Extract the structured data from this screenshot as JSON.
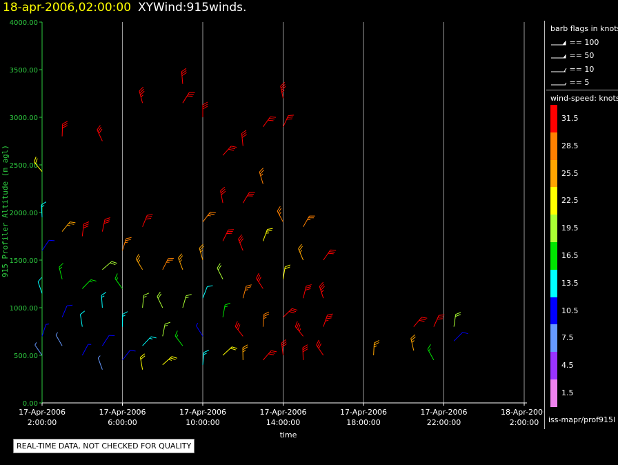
{
  "header": {
    "datetime": "18-apr-2006,02:00:00",
    "title": "XYWind:915winds."
  },
  "chart_data": {
    "type": "scatter",
    "subtype": "wind-barb time-height",
    "xlabel": "time",
    "ylabel": "915 Profiler Altitude (m agl)",
    "ylim": [
      0,
      4000
    ],
    "xlim_hours": [
      0,
      24
    ],
    "y_ticks": [
      "0.00",
      "500.00",
      "1000.00",
      "1500.00",
      "2000.00",
      "2500.00",
      "3000.00",
      "3500.00",
      "4000.00"
    ],
    "x_ticks": [
      {
        "line1": "17-Apr-2006",
        "line2": "2:00:00"
      },
      {
        "line1": "17-Apr-2006",
        "line2": "6:00:00"
      },
      {
        "line1": "17-Apr-2006",
        "line2": "10:00:00"
      },
      {
        "line1": "17-Apr-2006",
        "line2": "14:00:00"
      },
      {
        "line1": "17-Apr-2006",
        "line2": "18:00:00"
      },
      {
        "line1": "17-Apr-2006",
        "line2": "22:00:00"
      },
      {
        "line1": "18-Apr-2006",
        "line2": "2:00:00"
      }
    ],
    "grid": "vertical",
    "wind_barbs": [
      {
        "t": "17-Apr-2006 2:00",
        "alt_m": 2430,
        "speed_kt": 22
      },
      {
        "t": "17-Apr-2006 2:00",
        "alt_m": 1950,
        "speed_kt": 14
      },
      {
        "t": "17-Apr-2006 2:00",
        "alt_m": 1600,
        "speed_kt": 10
      },
      {
        "t": "17-Apr-2006 2:00",
        "alt_m": 1150,
        "speed_kt": 12
      },
      {
        "t": "17-Apr-2006 2:00",
        "alt_m": 700,
        "speed_kt": 9
      },
      {
        "t": "17-Apr-2006 2:00",
        "alt_m": 500,
        "speed_kt": 8
      },
      {
        "t": "17-Apr-2006 3:00",
        "alt_m": 2800,
        "speed_kt": 32
      },
      {
        "t": "17-Apr-2006 3:00",
        "alt_m": 1800,
        "speed_kt": 24
      },
      {
        "t": "17-Apr-2006 3:00",
        "alt_m": 1300,
        "speed_kt": 15
      },
      {
        "t": "17-Apr-2006 3:00",
        "alt_m": 900,
        "speed_kt": 11
      },
      {
        "t": "17-Apr-2006 3:00",
        "alt_m": 600,
        "speed_kt": 7
      },
      {
        "t": "17-Apr-2006 4:00",
        "alt_m": 1750,
        "speed_kt": 30
      },
      {
        "t": "17-Apr-2006 4:00",
        "alt_m": 1200,
        "speed_kt": 17
      },
      {
        "t": "17-Apr-2006 4:00",
        "alt_m": 800,
        "speed_kt": 12
      },
      {
        "t": "17-Apr-2006 4:00",
        "alt_m": 500,
        "speed_kt": 9
      },
      {
        "t": "17-Apr-2006 5:00",
        "alt_m": 2750,
        "speed_kt": 32
      },
      {
        "t": "17-Apr-2006 5:00",
        "alt_m": 1800,
        "speed_kt": 31
      },
      {
        "t": "17-Apr-2006 5:00",
        "alt_m": 1400,
        "speed_kt": 20
      },
      {
        "t": "17-Apr-2006 5:00",
        "alt_m": 1000,
        "speed_kt": 14
      },
      {
        "t": "17-Apr-2006 5:00",
        "alt_m": 600,
        "speed_kt": 10
      },
      {
        "t": "17-Apr-2006 5:00",
        "alt_m": 350,
        "speed_kt": 7
      },
      {
        "t": "17-Apr-2006 6:00",
        "alt_m": 1600,
        "speed_kt": 28
      },
      {
        "t": "17-Apr-2006 6:00",
        "alt_m": 1200,
        "speed_kt": 16
      },
      {
        "t": "17-Apr-2006 6:00",
        "alt_m": 800,
        "speed_kt": 13
      },
      {
        "t": "17-Apr-2006 6:00",
        "alt_m": 450,
        "speed_kt": 10
      },
      {
        "t": "17-Apr-2006 7:00",
        "alt_m": 3150,
        "speed_kt": 33
      },
      {
        "t": "17-Apr-2006 7:00",
        "alt_m": 1850,
        "speed_kt": 32
      },
      {
        "t": "17-Apr-2006 7:00",
        "alt_m": 1400,
        "speed_kt": 26
      },
      {
        "t": "17-Apr-2006 7:00",
        "alt_m": 1000,
        "speed_kt": 18
      },
      {
        "t": "17-Apr-2006 7:00",
        "alt_m": 600,
        "speed_kt": 14
      },
      {
        "t": "17-Apr-2006 7:00",
        "alt_m": 350,
        "speed_kt": 21
      },
      {
        "t": "17-Apr-2006 8:00",
        "alt_m": 1400,
        "speed_kt": 27
      },
      {
        "t": "17-Apr-2006 8:00",
        "alt_m": 1000,
        "speed_kt": 20
      },
      {
        "t": "17-Apr-2006 8:00",
        "alt_m": 700,
        "speed_kt": 18
      },
      {
        "t": "17-Apr-2006 8:00",
        "alt_m": 400,
        "speed_kt": 23
      },
      {
        "t": "17-Apr-2006 9:00",
        "alt_m": 3350,
        "speed_kt": 32
      },
      {
        "t": "17-Apr-2006 9:00",
        "alt_m": 3150,
        "speed_kt": 32
      },
      {
        "t": "17-Apr-2006 9:00",
        "alt_m": 1400,
        "speed_kt": 25
      },
      {
        "t": "17-Apr-2006 9:00",
        "alt_m": 1000,
        "speed_kt": 19
      },
      {
        "t": "17-Apr-2006 9:00",
        "alt_m": 600,
        "speed_kt": 17
      },
      {
        "t": "17-Apr-2006 10:00",
        "alt_m": 3000,
        "speed_kt": 31
      },
      {
        "t": "17-Apr-2006 10:00",
        "alt_m": 1900,
        "speed_kt": 27
      },
      {
        "t": "17-Apr-2006 10:00",
        "alt_m": 1500,
        "speed_kt": 24
      },
      {
        "t": "17-Apr-2006 10:00",
        "alt_m": 1100,
        "speed_kt": 12
      },
      {
        "t": "17-Apr-2006 10:00",
        "alt_m": 700,
        "speed_kt": 9
      },
      {
        "t": "17-Apr-2006 10:00",
        "alt_m": 400,
        "speed_kt": 13
      },
      {
        "t": "17-Apr-2006 11:00",
        "alt_m": 2600,
        "speed_kt": 31
      },
      {
        "t": "17-Apr-2006 11:00",
        "alt_m": 2100,
        "speed_kt": 31
      },
      {
        "t": "17-Apr-2006 11:00",
        "alt_m": 1700,
        "speed_kt": 30
      },
      {
        "t": "17-Apr-2006 11:00",
        "alt_m": 1300,
        "speed_kt": 20
      },
      {
        "t": "17-Apr-2006 11:00",
        "alt_m": 900,
        "speed_kt": 15
      },
      {
        "t": "17-Apr-2006 11:00",
        "alt_m": 500,
        "speed_kt": 22
      },
      {
        "t": "17-Apr-2006 12:00",
        "alt_m": 2700,
        "speed_kt": 32
      },
      {
        "t": "17-Apr-2006 12:00",
        "alt_m": 2100,
        "speed_kt": 32
      },
      {
        "t": "17-Apr-2006 12:00",
        "alt_m": 1600,
        "speed_kt": 31
      },
      {
        "t": "17-Apr-2006 12:00",
        "alt_m": 1100,
        "speed_kt": 29
      },
      {
        "t": "17-Apr-2006 12:00",
        "alt_m": 700,
        "speed_kt": 30
      },
      {
        "t": "17-Apr-2006 12:00",
        "alt_m": 450,
        "speed_kt": 26
      },
      {
        "t": "17-Apr-2006 13:00",
        "alt_m": 2900,
        "speed_kt": 32
      },
      {
        "t": "17-Apr-2006 13:00",
        "alt_m": 2300,
        "speed_kt": 27
      },
      {
        "t": "17-Apr-2006 13:00",
        "alt_m": 1700,
        "speed_kt": 23
      },
      {
        "t": "17-Apr-2006 13:00",
        "alt_m": 1200,
        "speed_kt": 30
      },
      {
        "t": "17-Apr-2006 13:00",
        "alt_m": 800,
        "speed_kt": 28
      },
      {
        "t": "17-Apr-2006 13:00",
        "alt_m": 450,
        "speed_kt": 30
      },
      {
        "t": "17-Apr-2006 14:00",
        "alt_m": 3200,
        "speed_kt": 33
      },
      {
        "t": "17-Apr-2006 14:00",
        "alt_m": 2900,
        "speed_kt": 32
      },
      {
        "t": "17-Apr-2006 14:00",
        "alt_m": 1900,
        "speed_kt": 28
      },
      {
        "t": "17-Apr-2006 14:00",
        "alt_m": 1300,
        "speed_kt": 22
      },
      {
        "t": "17-Apr-2006 14:00",
        "alt_m": 900,
        "speed_kt": 31
      },
      {
        "t": "17-Apr-2006 14:00",
        "alt_m": 500,
        "speed_kt": 32
      },
      {
        "t": "17-Apr-2006 15:00",
        "alt_m": 1850,
        "speed_kt": 29
      },
      {
        "t": "17-Apr-2006 15:00",
        "alt_m": 1500,
        "speed_kt": 26
      },
      {
        "t": "17-Apr-2006 15:00",
        "alt_m": 1100,
        "speed_kt": 32
      },
      {
        "t": "17-Apr-2006 15:00",
        "alt_m": 700,
        "speed_kt": 33
      },
      {
        "t": "17-Apr-2006 15:00",
        "alt_m": 450,
        "speed_kt": 32
      },
      {
        "t": "17-Apr-2006 16:00",
        "alt_m": 1500,
        "speed_kt": 30
      },
      {
        "t": "17-Apr-2006 16:00",
        "alt_m": 1100,
        "speed_kt": 33
      },
      {
        "t": "17-Apr-2006 16:00",
        "alt_m": 800,
        "speed_kt": 33
      },
      {
        "t": "17-Apr-2006 16:00",
        "alt_m": 500,
        "speed_kt": 32
      },
      {
        "t": "17-Apr-2006 18:30",
        "alt_m": 500,
        "speed_kt": 26
      },
      {
        "t": "17-Apr-2006 20:30",
        "alt_m": 800,
        "speed_kt": 32
      },
      {
        "t": "17-Apr-2006 20:30",
        "alt_m": 550,
        "speed_kt": 24
      },
      {
        "t": "17-Apr-2006 21:30",
        "alt_m": 800,
        "speed_kt": 30
      },
      {
        "t": "17-Apr-2006 21:30",
        "alt_m": 450,
        "speed_kt": 17
      },
      {
        "t": "17-Apr-2006 22:30",
        "alt_m": 800,
        "speed_kt": 20
      },
      {
        "t": "17-Apr-2006 22:30",
        "alt_m": 650,
        "speed_kt": 10
      }
    ]
  },
  "legend": {
    "barb_title": "barb flags in knots",
    "barb_items": [
      "== 100",
      "== 50",
      "== 10",
      "== 5"
    ],
    "speed_title": "wind-speed: knots",
    "speed_scale": [
      {
        "label": "31.5",
        "color": "#ff0000"
      },
      {
        "label": "28.5",
        "color": "#ff8000"
      },
      {
        "label": "25.5",
        "color": "#ffa500"
      },
      {
        "label": "22.5",
        "color": "#ffff00"
      },
      {
        "label": "19.5",
        "color": "#aaff33"
      },
      {
        "label": "16.5",
        "color": "#00e600"
      },
      {
        "label": "13.5",
        "color": "#00ffff"
      },
      {
        "label": "10.5",
        "color": "#0000ff"
      },
      {
        "label": "7.5",
        "color": "#6699ff"
      },
      {
        "label": "4.5",
        "color": "#9933ff"
      },
      {
        "label": "1.5",
        "color": "#ee82ee"
      }
    ],
    "source_path": "iss-mapr/prof915l"
  },
  "footer": {
    "quality_note": "REAL-TIME DATA, NOT CHECKED FOR QUALITY"
  }
}
